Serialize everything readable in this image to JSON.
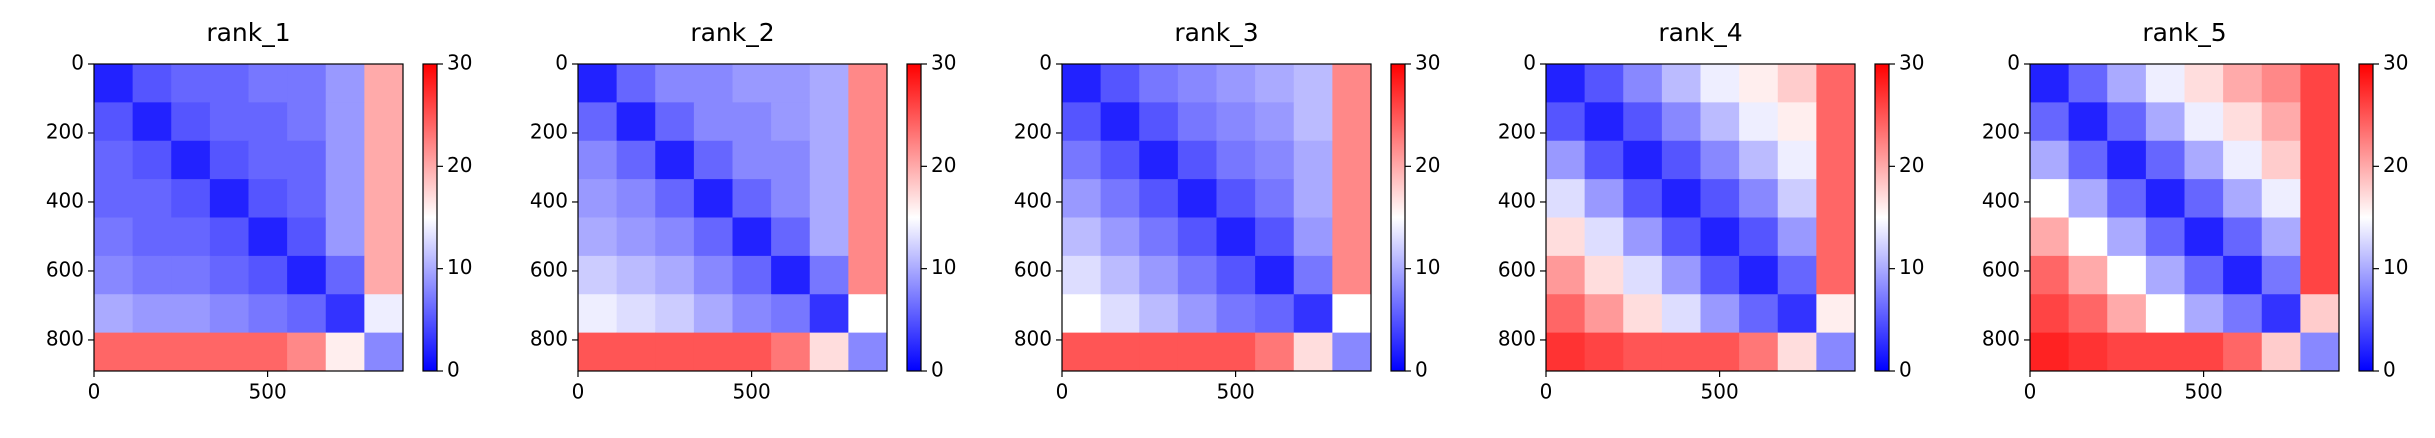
{
  "chart_data": [
    {
      "type": "heatmap",
      "title": "rank_1",
      "colormap": "bwr",
      "xlim": [
        0,
        890
      ],
      "ylim": [
        890,
        0
      ],
      "xticks": [
        0,
        500
      ],
      "yticks": [
        0,
        200,
        400,
        600,
        800
      ],
      "values": [
        [
          2,
          5,
          6,
          6,
          7,
          7,
          9,
          20
        ],
        [
          5,
          2,
          5,
          6,
          6,
          7,
          9,
          20
        ],
        [
          6,
          5,
          2,
          5,
          6,
          6,
          9,
          20
        ],
        [
          6,
          6,
          5,
          2,
          5,
          6,
          9,
          20
        ],
        [
          7,
          6,
          6,
          5,
          2,
          5,
          9,
          20
        ],
        [
          8,
          7,
          7,
          6,
          5,
          2,
          6,
          20
        ],
        [
          10,
          9,
          9,
          8,
          7,
          6,
          3,
          14
        ],
        [
          24,
          24,
          24,
          24,
          24,
          22,
          16,
          8
        ]
      ],
      "clim": [
        0,
        30
      ],
      "cticks": [
        0,
        10,
        20,
        30
      ]
    },
    {
      "type": "heatmap",
      "title": "rank_2",
      "colormap": "bwr",
      "xlim": [
        0,
        890
      ],
      "ylim": [
        890,
        0
      ],
      "xticks": [
        0,
        500
      ],
      "yticks": [
        0,
        200,
        400,
        600,
        800
      ],
      "values": [
        [
          2,
          6,
          8,
          8,
          9,
          9,
          10,
          22
        ],
        [
          6,
          2,
          6,
          8,
          8,
          9,
          10,
          22
        ],
        [
          8,
          6,
          2,
          6,
          8,
          8,
          10,
          22
        ],
        [
          9,
          8,
          6,
          2,
          6,
          8,
          10,
          22
        ],
        [
          10,
          9,
          8,
          6,
          2,
          6,
          10,
          22
        ],
        [
          12,
          11,
          10,
          8,
          6,
          2,
          7,
          22
        ],
        [
          14,
          13,
          12,
          10,
          8,
          7,
          3,
          15
        ],
        [
          25,
          25,
          25,
          25,
          25,
          23,
          17,
          8
        ]
      ],
      "clim": [
        0,
        30
      ],
      "cticks": [
        0,
        10,
        20,
        30
      ]
    },
    {
      "type": "heatmap",
      "title": "rank_3",
      "colormap": "bwr",
      "xlim": [
        0,
        890
      ],
      "ylim": [
        890,
        0
      ],
      "xticks": [
        0,
        500
      ],
      "yticks": [
        0,
        200,
        400,
        600,
        800
      ],
      "values": [
        [
          2,
          5,
          7,
          8,
          9,
          10,
          11,
          22
        ],
        [
          5,
          2,
          5,
          7,
          8,
          9,
          11,
          22
        ],
        [
          7,
          5,
          2,
          5,
          7,
          8,
          10,
          22
        ],
        [
          9,
          7,
          5,
          2,
          5,
          7,
          10,
          22
        ],
        [
          11,
          9,
          7,
          5,
          2,
          5,
          9,
          22
        ],
        [
          13,
          11,
          9,
          7,
          5,
          2,
          7,
          22
        ],
        [
          15,
          13,
          11,
          9,
          7,
          6,
          3,
          15
        ],
        [
          25,
          25,
          25,
          25,
          25,
          23,
          17,
          8
        ]
      ],
      "clim": [
        0,
        30
      ],
      "cticks": [
        0,
        10,
        20,
        30
      ]
    },
    {
      "type": "heatmap",
      "title": "rank_4",
      "colormap": "bwr",
      "xlim": [
        0,
        890
      ],
      "ylim": [
        890,
        0
      ],
      "xticks": [
        0,
        500
      ],
      "yticks": [
        0,
        200,
        400,
        600,
        800
      ],
      "values": [
        [
          2,
          5,
          8,
          11,
          14,
          16,
          18,
          24
        ],
        [
          5,
          2,
          5,
          8,
          11,
          14,
          16,
          24
        ],
        [
          9,
          5,
          2,
          5,
          8,
          11,
          14,
          24
        ],
        [
          13,
          9,
          5,
          2,
          5,
          8,
          12,
          24
        ],
        [
          17,
          13,
          9,
          5,
          2,
          5,
          9,
          24
        ],
        [
          21,
          17,
          13,
          9,
          5,
          2,
          6,
          24
        ],
        [
          24,
          21,
          17,
          13,
          9,
          6,
          3,
          16
        ],
        [
          27,
          26,
          25,
          25,
          25,
          23,
          17,
          8
        ]
      ],
      "clim": [
        0,
        30
      ],
      "cticks": [
        0,
        10,
        20,
        30
      ]
    },
    {
      "type": "heatmap",
      "title": "rank_5",
      "colormap": "bwr",
      "xlim": [
        0,
        890
      ],
      "ylim": [
        890,
        0
      ],
      "xticks": [
        0,
        500
      ],
      "yticks": [
        0,
        200,
        400,
        600,
        800
      ],
      "values": [
        [
          2,
          6,
          10,
          14,
          17,
          20,
          22,
          26
        ],
        [
          6,
          2,
          6,
          10,
          14,
          17,
          20,
          26
        ],
        [
          10,
          6,
          2,
          6,
          10,
          14,
          18,
          26
        ],
        [
          15,
          10,
          6,
          2,
          6,
          10,
          14,
          26
        ],
        [
          20,
          15,
          10,
          6,
          2,
          6,
          10,
          26
        ],
        [
          24,
          20,
          15,
          10,
          6,
          2,
          7,
          26
        ],
        [
          26,
          24,
          20,
          15,
          10,
          7,
          3,
          18
        ],
        [
          28,
          27,
          26,
          26,
          26,
          24,
          18,
          8
        ]
      ],
      "clim": [
        0,
        30
      ],
      "cticks": [
        0,
        10,
        20,
        30
      ]
    }
  ]
}
